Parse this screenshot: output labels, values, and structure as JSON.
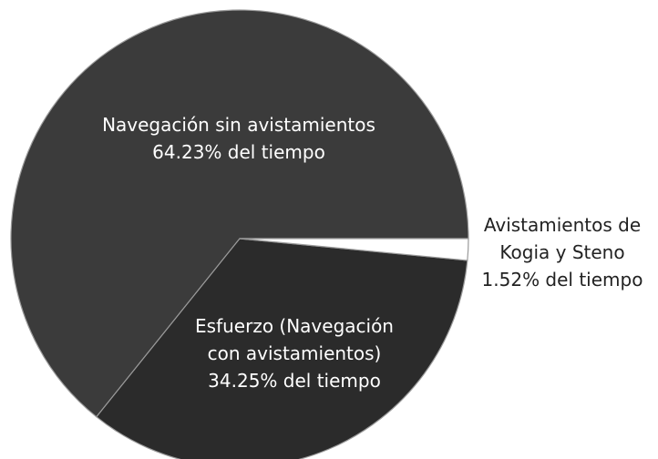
{
  "chart_data": {
    "type": "pie",
    "categories": [
      "Navegación sin avistamientos",
      "Esfuerzo (Navegación con avistamientos)",
      "Avistamientos de Kogia y Steno"
    ],
    "values": [
      64.23,
      34.25,
      1.52
    ],
    "value_labels": [
      "64.23% del tiempo",
      "34.25% del tiempo",
      "1.52% del tiempo"
    ],
    "colors": [
      "#3b3b3b",
      "#2b2b2b",
      "#ffffff"
    ]
  }
}
